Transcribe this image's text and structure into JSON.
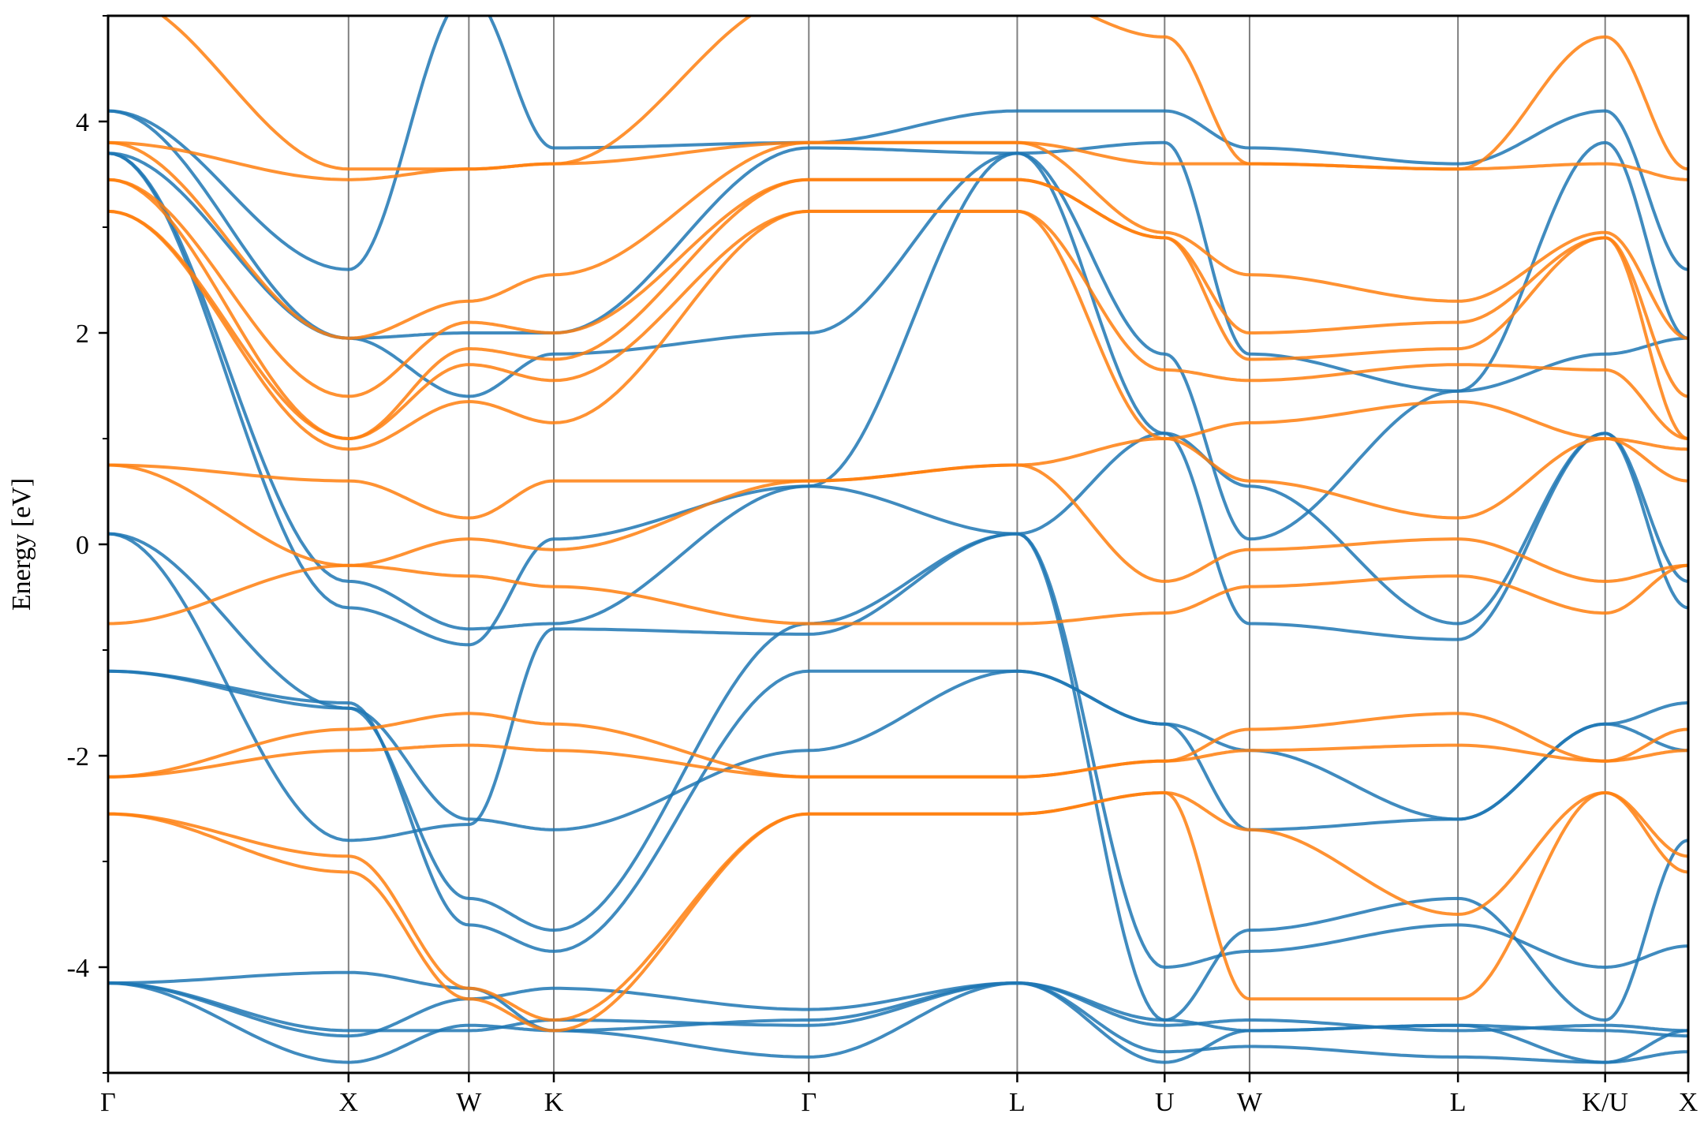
{
  "chart_data": {
    "type": "line",
    "title": "",
    "xlabel": "",
    "ylabel": "Energy [eV]",
    "ylim": [
      -5,
      5
    ],
    "y_major_ticks": [
      -4,
      -2,
      0,
      2,
      4
    ],
    "y_minor_ticks": [
      -5,
      -3,
      -1,
      1,
      3,
      5
    ],
    "y_tick_labels": [
      "-4",
      "-2",
      "0",
      "2",
      "4"
    ],
    "grid": false,
    "legend": "none",
    "kpath": {
      "labels": [
        "Γ",
        "X",
        "W",
        "K",
        "Γ",
        "L",
        "U",
        "W",
        "L",
        "K/U",
        "X"
      ],
      "positions": [
        0,
        1.155,
        1.733,
        2.141,
        3.366,
        4.367,
        5.075,
        5.483,
        6.484,
        7.191,
        7.59
      ]
    },
    "colors": {
      "spin_up": "#1f77b4",
      "spin_down": "#ff7f0e"
    },
    "series": [
      {
        "color": "#1f77b4",
        "values": [
          [
            -4.15,
            -4.05,
            -4.2,
            -4.6,
            -4.5,
            -4.15,
            -4.5,
            -4.6,
            -4.55,
            -4.6,
            -4.65
          ],
          [
            -4.15,
            -4.6,
            -4.6,
            -4.5,
            -4.55,
            -4.15,
            -4.55,
            -4.5,
            -4.6,
            -4.55,
            -4.6
          ],
          [
            -4.15,
            -4.65,
            -4.3,
            -4.2,
            -4.4,
            -4.15,
            -4.9,
            -4.6,
            -4.55,
            -4.9,
            -4.6
          ],
          [
            -4.15,
            -4.9,
            -4.55,
            -4.6,
            -4.85,
            -4.15,
            -4.8,
            -4.75,
            -4.85,
            -4.9,
            -4.8
          ],
          [
            -1.2,
            -1.55,
            -2.6,
            -2.7,
            -1.95,
            -1.2,
            -1.7,
            -2.7,
            -2.6,
            -1.7,
            -1.95
          ],
          [
            -1.2,
            -1.5,
            -3.6,
            -3.85,
            -1.2,
            -1.2,
            -1.7,
            -1.95,
            -2.6,
            -1.7,
            -1.5
          ],
          [
            0.1,
            -1.55,
            -3.35,
            -3.65,
            -0.75,
            0.1,
            -4.0,
            -3.85,
            -3.6,
            -4.0,
            -3.8
          ],
          [
            0.1,
            -2.8,
            -2.65,
            -0.8,
            -0.85,
            0.1,
            -4.5,
            -3.65,
            -3.35,
            -4.5,
            -2.8
          ],
          [
            3.7,
            -0.35,
            -0.8,
            -0.75,
            0.55,
            0.1,
            1.05,
            -0.75,
            -0.9,
            1.05,
            -0.35
          ],
          [
            3.7,
            -0.6,
            -0.95,
            0.05,
            0.55,
            3.7,
            1.05,
            0.55,
            -0.75,
            1.05,
            -0.6
          ],
          [
            3.7,
            1.95,
            1.4,
            1.8,
            2.0,
            3.7,
            1.8,
            0.05,
            1.45,
            1.8,
            1.95
          ],
          [
            4.1,
            1.95,
            2.0,
            2.0,
            3.75,
            3.7,
            3.8,
            1.8,
            1.45,
            3.8,
            1.95
          ],
          [
            4.1,
            2.6,
            5.2,
            3.75,
            3.8,
            4.1,
            4.1,
            3.75,
            3.6,
            4.1,
            2.6
          ]
        ]
      },
      {
        "color": "#ff7f0e",
        "values": [
          [
            -2.55,
            -2.95,
            -4.2,
            -4.5,
            -2.55,
            -2.55,
            -2.35,
            -4.3,
            -4.3,
            -2.35,
            -2.95
          ],
          [
            -2.55,
            -3.1,
            -4.3,
            -4.6,
            -2.55,
            -2.55,
            -2.35,
            -2.7,
            -3.5,
            -2.35,
            -3.1
          ],
          [
            -2.2,
            -1.95,
            -1.9,
            -1.95,
            -2.2,
            -2.2,
            -2.05,
            -1.95,
            -1.9,
            -2.05,
            -1.95
          ],
          [
            -2.2,
            -1.75,
            -1.6,
            -1.7,
            -2.2,
            -2.2,
            -2.05,
            -1.75,
            -1.6,
            -2.05,
            -1.75
          ],
          [
            -0.75,
            -0.2,
            -0.3,
            -0.4,
            -0.75,
            -0.75,
            -0.65,
            -0.4,
            -0.3,
            -0.65,
            -0.2
          ],
          [
            0.75,
            -0.2,
            0.05,
            -0.05,
            0.6,
            0.75,
            -0.35,
            -0.05,
            0.05,
            -0.35,
            -0.2
          ],
          [
            0.75,
            0.6,
            0.25,
            0.6,
            0.6,
            0.75,
            1.0,
            0.6,
            0.25,
            1.0,
            0.6
          ],
          [
            3.15,
            0.9,
            1.35,
            1.15,
            3.15,
            3.15,
            1.0,
            1.15,
            1.35,
            1.0,
            0.9
          ],
          [
            3.15,
            1.0,
            1.7,
            1.55,
            3.15,
            3.15,
            1.65,
            1.55,
            1.7,
            1.65,
            1.0
          ],
          [
            3.45,
            1.0,
            1.85,
            1.75,
            3.45,
            3.45,
            2.9,
            1.75,
            1.85,
            2.9,
            1.0
          ],
          [
            3.45,
            1.4,
            2.1,
            2.0,
            3.45,
            3.45,
            2.9,
            2.0,
            2.1,
            2.9,
            1.4
          ],
          [
            3.8,
            1.95,
            2.3,
            2.55,
            3.8,
            3.8,
            2.95,
            2.55,
            2.3,
            2.95,
            1.95
          ],
          [
            3.8,
            3.45,
            3.55,
            3.6,
            3.8,
            3.8,
            3.6,
            3.6,
            3.55,
            3.6,
            3.45
          ],
          [
            5.2,
            3.55,
            3.55,
            3.6,
            5.2,
            5.2,
            4.8,
            3.6,
            3.55,
            4.8,
            3.55
          ]
        ]
      }
    ]
  }
}
